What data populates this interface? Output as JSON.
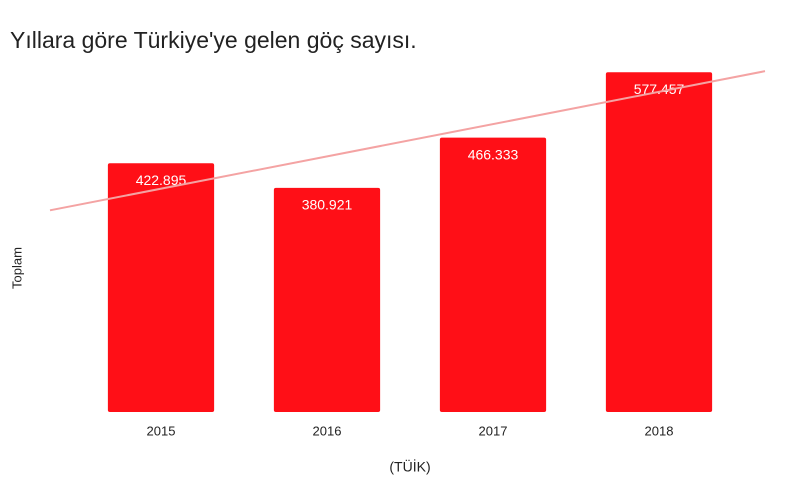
{
  "chart_data": {
    "type": "bar",
    "title": "Yıllara göre Türkiye'ye gelen göç sayısı.",
    "y_label": "Toplam",
    "x_label": "(TÜİK)",
    "categories": [
      "2015",
      "2016",
      "2017",
      "2018"
    ],
    "values": [
      422895,
      380921,
      466333,
      577457
    ],
    "value_labels": [
      "422.895",
      "380.921",
      "466.333",
      "577.457"
    ],
    "color": "#ff0f17",
    "ylim": [
      0,
      600000
    ],
    "trendline": true,
    "trendline_color": "#f4a3a3"
  }
}
